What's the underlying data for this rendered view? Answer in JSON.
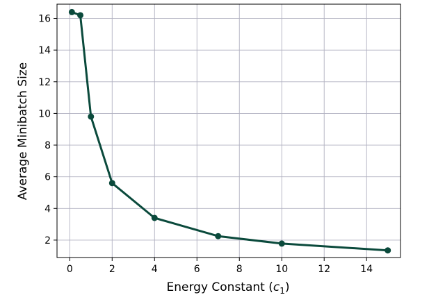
{
  "chart_data": {
    "type": "line",
    "title": "",
    "xlabel": "Energy Constant (",
    "xlabel_var": "c",
    "xlabel_sub": "1",
    "xlabel_end": ")",
    "ylabel": "Average Minibatch Size",
    "xlim": [
      -0.6,
      15.6
    ],
    "ylim": [
      0.9,
      16.9
    ],
    "xticks": [
      0,
      2,
      4,
      6,
      8,
      10,
      12,
      14
    ],
    "yticks": [
      2,
      4,
      6,
      8,
      10,
      12,
      14,
      16
    ],
    "grid": true,
    "series": [
      {
        "color": "#0b4a3c",
        "x": [
          0.1,
          0.5,
          1,
          2,
          4,
          7,
          10,
          15
        ],
        "y": [
          16.4,
          16.2,
          9.8,
          5.6,
          3.4,
          2.25,
          1.78,
          1.35
        ]
      }
    ]
  }
}
